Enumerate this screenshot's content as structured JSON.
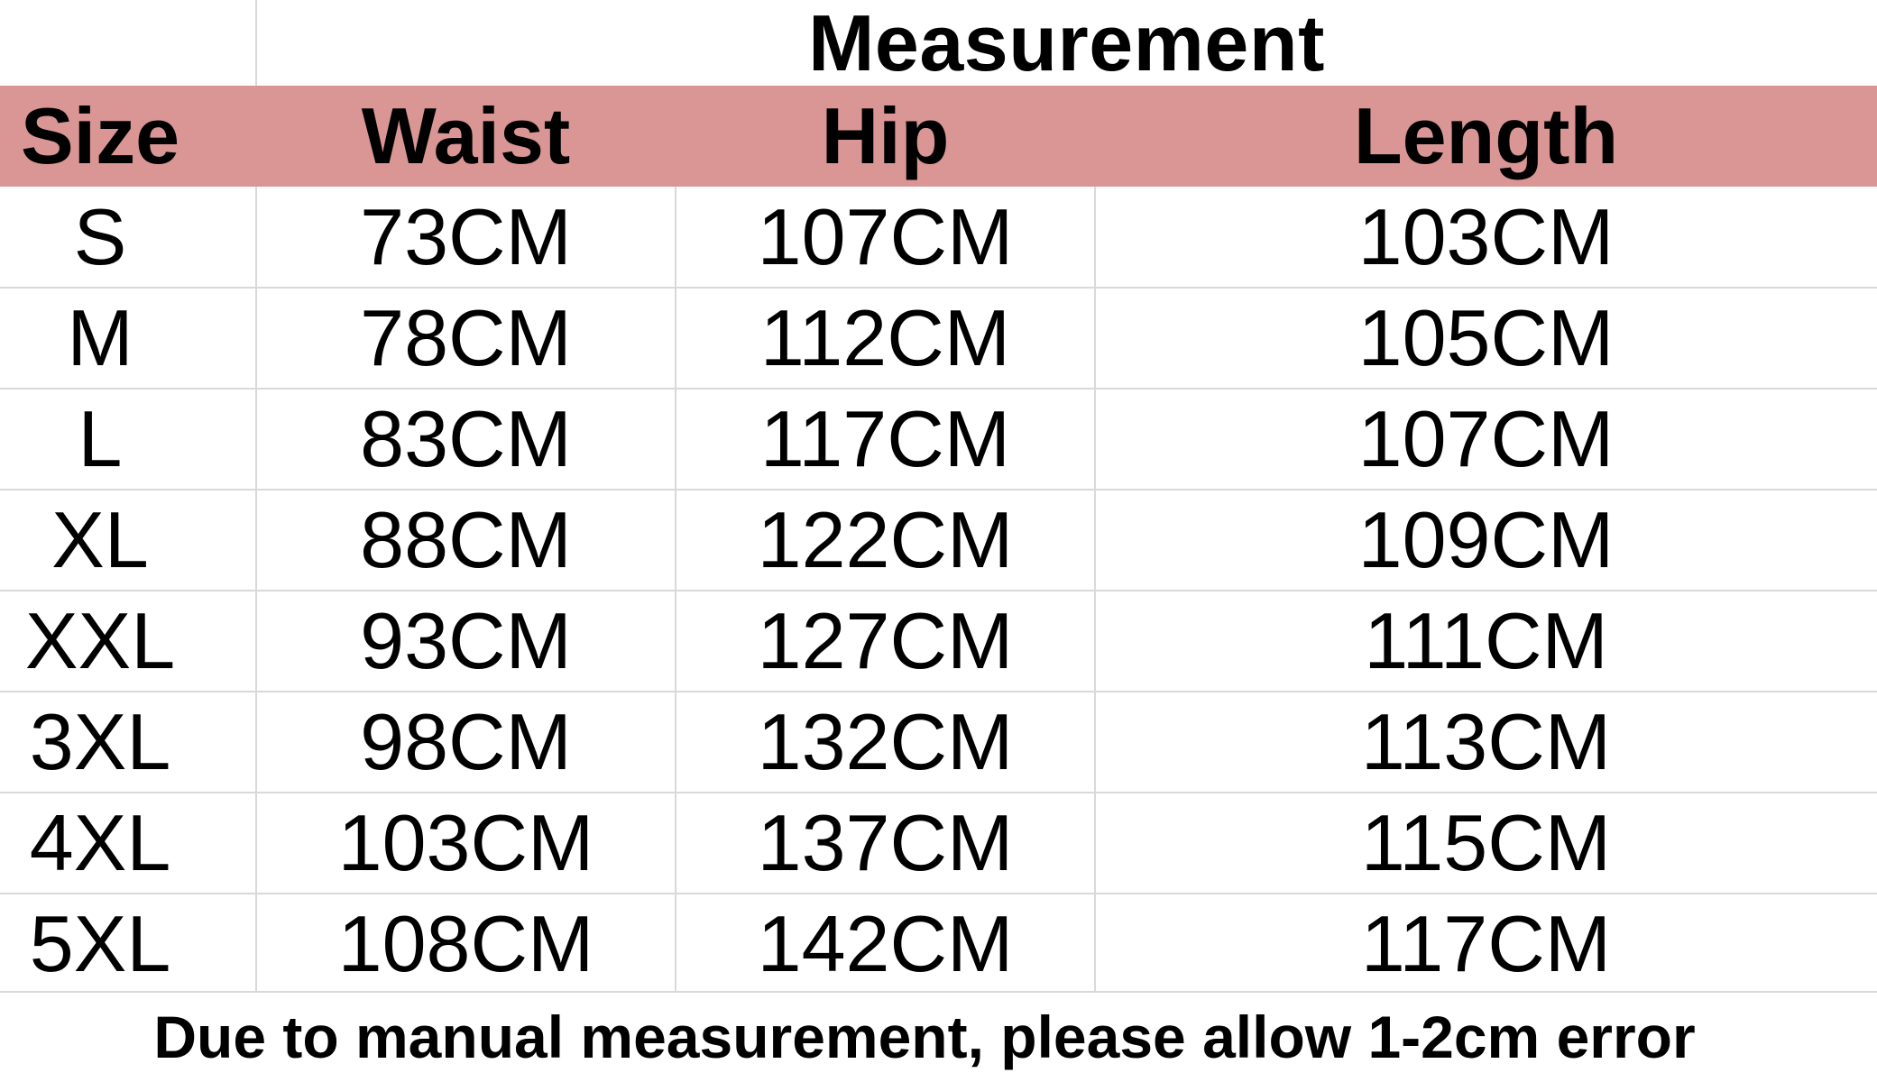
{
  "table": {
    "title": "Measurement",
    "headers": [
      "Size",
      "Waist",
      "Hip",
      "Length"
    ],
    "rows": [
      {
        "size": "S",
        "waist": "73CM",
        "hip": "107CM",
        "length": "103CM"
      },
      {
        "size": "M",
        "waist": "78CM",
        "hip": "112CM",
        "length": "105CM"
      },
      {
        "size": "L",
        "waist": "83CM",
        "hip": "117CM",
        "length": "107CM"
      },
      {
        "size": "XL",
        "waist": "88CM",
        "hip": "122CM",
        "length": "109CM"
      },
      {
        "size": "XXL",
        "waist": "93CM",
        "hip": "127CM",
        "length": "111CM"
      },
      {
        "size": "3XL",
        "waist": "98CM",
        "hip": "132CM",
        "length": "113CM"
      },
      {
        "size": "4XL",
        "waist": "103CM",
        "hip": "137CM",
        "length": "115CM"
      },
      {
        "size": "5XL",
        "waist": "108CM",
        "hip": "142CM",
        "length": "117CM"
      }
    ],
    "footnote": "Due to manual measurement, please allow 1-2cm error"
  },
  "colors": {
    "header_band": "#d99694",
    "gridline": "#d9d9d9",
    "text": "#000000"
  }
}
